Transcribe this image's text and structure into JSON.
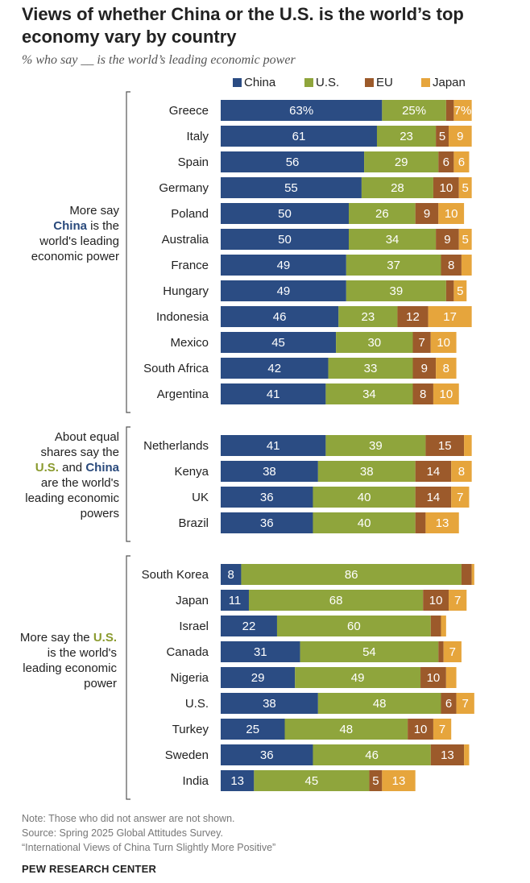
{
  "title": "Views of whether China or the U.S. is the world’s top economy vary by country",
  "subtitle": "% who say __ is the world’s leading economic power",
  "colors": {
    "china": "#2b4c83",
    "us": "#8fa53c",
    "eu": "#9c5a2b",
    "japan": "#e6a53c"
  },
  "legend": [
    {
      "key": "china",
      "label": "China"
    },
    {
      "key": "us",
      "label": "U.S."
    },
    {
      "key": "eu",
      "label": "EU"
    },
    {
      "key": "japan",
      "label": "Japan"
    }
  ],
  "group_labels": {
    "g1": {
      "pre": "More say",
      "hl": "China",
      "post": "is the world's leading economic power"
    },
    "g2": {
      "pre": "About equal shares say the",
      "hl1": "U.S.",
      "mid": "and",
      "hl2": "China",
      "post": "are the world's leading economic powers"
    },
    "g3": {
      "pre": "More say the",
      "hl": "U.S.",
      "post": "is the world's leading economic power"
    }
  },
  "chart_data": {
    "type": "bar",
    "orientation": "horizontal-stacked",
    "title": "Views of whether China or the U.S. is the world’s top economy vary by country",
    "series_names": [
      "China",
      "U.S.",
      "EU",
      "Japan"
    ],
    "unit": "%",
    "xlim": [
      0,
      100
    ],
    "groups": [
      {
        "name": "More say China is the world's leading economic power",
        "rows": [
          {
            "country": "Greece",
            "china": 63,
            "us": 25,
            "eu": 3,
            "japan": 7,
            "labels": [
              "63%",
              "25%",
              "",
              "7%"
            ]
          },
          {
            "country": "Italy",
            "china": 61,
            "us": 23,
            "eu": 5,
            "japan": 9,
            "labels": [
              "61",
              "23",
              "5",
              "9"
            ]
          },
          {
            "country": "Spain",
            "china": 56,
            "us": 29,
            "eu": 6,
            "japan": 6,
            "labels": [
              "56",
              "29",
              "6",
              "6"
            ]
          },
          {
            "country": "Germany",
            "china": 55,
            "us": 28,
            "eu": 10,
            "japan": 5,
            "labels": [
              "55",
              "28",
              "10",
              "5"
            ]
          },
          {
            "country": "Poland",
            "china": 50,
            "us": 26,
            "eu": 9,
            "japan": 10,
            "labels": [
              "50",
              "26",
              "9",
              "10"
            ]
          },
          {
            "country": "Australia",
            "china": 50,
            "us": 34,
            "eu": 9,
            "japan": 5,
            "labels": [
              "50",
              "34",
              "9",
              "5"
            ]
          },
          {
            "country": "France",
            "china": 49,
            "us": 37,
            "eu": 8,
            "japan": 4,
            "labels": [
              "49",
              "37",
              "8",
              ""
            ]
          },
          {
            "country": "Hungary",
            "china": 49,
            "us": 39,
            "eu": 3,
            "japan": 5,
            "labels": [
              "49",
              "39",
              "",
              "5"
            ]
          },
          {
            "country": "Indonesia",
            "china": 46,
            "us": 23,
            "eu": 12,
            "japan": 17,
            "labels": [
              "46",
              "23",
              "12",
              "17"
            ]
          },
          {
            "country": "Mexico",
            "china": 45,
            "us": 30,
            "eu": 7,
            "japan": 10,
            "labels": [
              "45",
              "30",
              "7",
              "10"
            ]
          },
          {
            "country": "South Africa",
            "china": 42,
            "us": 33,
            "eu": 9,
            "japan": 8,
            "labels": [
              "42",
              "33",
              "9",
              "8"
            ]
          },
          {
            "country": "Argentina",
            "china": 41,
            "us": 34,
            "eu": 8,
            "japan": 10,
            "labels": [
              "41",
              "34",
              "8",
              "10"
            ]
          }
        ]
      },
      {
        "name": "About equal shares say the U.S. and China are the world's leading economic powers",
        "rows": [
          {
            "country": "Netherlands",
            "china": 41,
            "us": 39,
            "eu": 15,
            "japan": 3,
            "labels": [
              "41",
              "39",
              "15",
              ""
            ]
          },
          {
            "country": "Kenya",
            "china": 38,
            "us": 38,
            "eu": 14,
            "japan": 8,
            "labels": [
              "38",
              "38",
              "14",
              "8"
            ]
          },
          {
            "country": "UK",
            "china": 36,
            "us": 40,
            "eu": 14,
            "japan": 7,
            "labels": [
              "36",
              "40",
              "14",
              "7"
            ]
          },
          {
            "country": "Brazil",
            "china": 36,
            "us": 40,
            "eu": 4,
            "japan": 13,
            "labels": [
              "36",
              "40",
              "",
              "13"
            ]
          }
        ]
      },
      {
        "name": "More say the U.S. is the world's leading economic power",
        "rows": [
          {
            "country": "South Korea",
            "china": 8,
            "us": 86,
            "eu": 4,
            "japan": 1,
            "labels": [
              "8",
              "86",
              "",
              ""
            ]
          },
          {
            "country": "Japan",
            "china": 11,
            "us": 68,
            "eu": 10,
            "japan": 7,
            "labels": [
              "11",
              "68",
              "10",
              "7"
            ]
          },
          {
            "country": "Israel",
            "china": 22,
            "us": 60,
            "eu": 4,
            "japan": 2,
            "labels": [
              "22",
              "60",
              "",
              ""
            ]
          },
          {
            "country": "Canada",
            "china": 31,
            "us": 54,
            "eu": 2,
            "japan": 7,
            "labels": [
              "31",
              "54",
              "",
              "7"
            ]
          },
          {
            "country": "Nigeria",
            "china": 29,
            "us": 49,
            "eu": 10,
            "japan": 4,
            "labels": [
              "29",
              "49",
              "10",
              ""
            ]
          },
          {
            "country": "U.S.",
            "china": 38,
            "us": 48,
            "eu": 6,
            "japan": 7,
            "labels": [
              "38",
              "48",
              "6",
              "7"
            ]
          },
          {
            "country": "Turkey",
            "china": 25,
            "us": 48,
            "eu": 10,
            "japan": 7,
            "labels": [
              "25",
              "48",
              "10",
              "7"
            ]
          },
          {
            "country": "Sweden",
            "china": 36,
            "us": 46,
            "eu": 13,
            "japan": 2,
            "labels": [
              "36",
              "46",
              "13",
              ""
            ]
          },
          {
            "country": "India",
            "china": 13,
            "us": 45,
            "eu": 5,
            "japan": 13,
            "labels": [
              "13",
              "45",
              "5",
              "13"
            ]
          }
        ]
      }
    ]
  },
  "notes": {
    "note": "Note: Those who did not answer are not shown.",
    "source": "Source: Spring 2025 Global Attitudes Survey.",
    "report": "“International Views of China Turn Slightly More Positive”"
  },
  "footer": "PEW RESEARCH CENTER"
}
